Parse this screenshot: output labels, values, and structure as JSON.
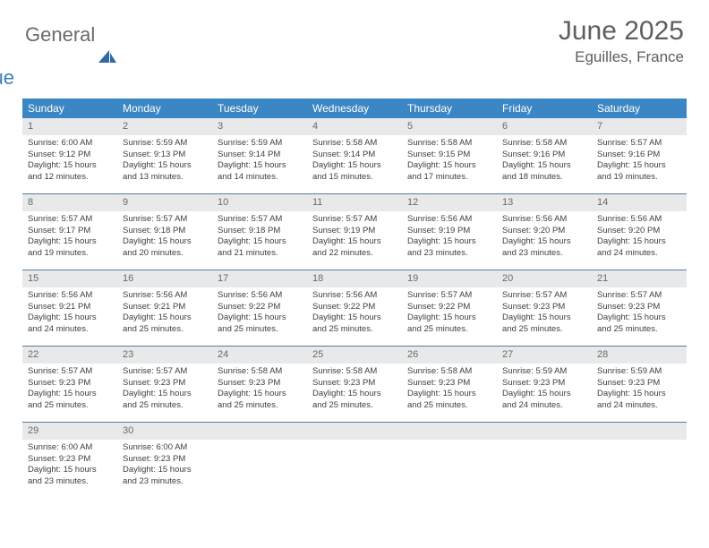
{
  "brand": {
    "part1": "General",
    "part2": "Blue"
  },
  "title": "June 2025",
  "location": "Eguilles, France",
  "colors": {
    "header_bg": "#3b86c4",
    "header_text": "#ffffff",
    "daynum_bg": "#e8e9ea",
    "daynum_text": "#6a6a6a",
    "body_text": "#3f3f3f",
    "row_border": "#5a7d9a",
    "title_text": "#5e5e5e",
    "logo_gray": "#6b6b6b",
    "logo_blue": "#3b7fb8"
  },
  "day_names": [
    "Sunday",
    "Monday",
    "Tuesday",
    "Wednesday",
    "Thursday",
    "Friday",
    "Saturday"
  ],
  "weeks": [
    [
      {
        "n": "1",
        "sr": "6:00 AM",
        "ss": "9:12 PM",
        "dl": "15 hours and 12 minutes."
      },
      {
        "n": "2",
        "sr": "5:59 AM",
        "ss": "9:13 PM",
        "dl": "15 hours and 13 minutes."
      },
      {
        "n": "3",
        "sr": "5:59 AM",
        "ss": "9:14 PM",
        "dl": "15 hours and 14 minutes."
      },
      {
        "n": "4",
        "sr": "5:58 AM",
        "ss": "9:14 PM",
        "dl": "15 hours and 15 minutes."
      },
      {
        "n": "5",
        "sr": "5:58 AM",
        "ss": "9:15 PM",
        "dl": "15 hours and 17 minutes."
      },
      {
        "n": "6",
        "sr": "5:58 AM",
        "ss": "9:16 PM",
        "dl": "15 hours and 18 minutes."
      },
      {
        "n": "7",
        "sr": "5:57 AM",
        "ss": "9:16 PM",
        "dl": "15 hours and 19 minutes."
      }
    ],
    [
      {
        "n": "8",
        "sr": "5:57 AM",
        "ss": "9:17 PM",
        "dl": "15 hours and 19 minutes."
      },
      {
        "n": "9",
        "sr": "5:57 AM",
        "ss": "9:18 PM",
        "dl": "15 hours and 20 minutes."
      },
      {
        "n": "10",
        "sr": "5:57 AM",
        "ss": "9:18 PM",
        "dl": "15 hours and 21 minutes."
      },
      {
        "n": "11",
        "sr": "5:57 AM",
        "ss": "9:19 PM",
        "dl": "15 hours and 22 minutes."
      },
      {
        "n": "12",
        "sr": "5:56 AM",
        "ss": "9:19 PM",
        "dl": "15 hours and 23 minutes."
      },
      {
        "n": "13",
        "sr": "5:56 AM",
        "ss": "9:20 PM",
        "dl": "15 hours and 23 minutes."
      },
      {
        "n": "14",
        "sr": "5:56 AM",
        "ss": "9:20 PM",
        "dl": "15 hours and 24 minutes."
      }
    ],
    [
      {
        "n": "15",
        "sr": "5:56 AM",
        "ss": "9:21 PM",
        "dl": "15 hours and 24 minutes."
      },
      {
        "n": "16",
        "sr": "5:56 AM",
        "ss": "9:21 PM",
        "dl": "15 hours and 25 minutes."
      },
      {
        "n": "17",
        "sr": "5:56 AM",
        "ss": "9:22 PM",
        "dl": "15 hours and 25 minutes."
      },
      {
        "n": "18",
        "sr": "5:56 AM",
        "ss": "9:22 PM",
        "dl": "15 hours and 25 minutes."
      },
      {
        "n": "19",
        "sr": "5:57 AM",
        "ss": "9:22 PM",
        "dl": "15 hours and 25 minutes."
      },
      {
        "n": "20",
        "sr": "5:57 AM",
        "ss": "9:23 PM",
        "dl": "15 hours and 25 minutes."
      },
      {
        "n": "21",
        "sr": "5:57 AM",
        "ss": "9:23 PM",
        "dl": "15 hours and 25 minutes."
      }
    ],
    [
      {
        "n": "22",
        "sr": "5:57 AM",
        "ss": "9:23 PM",
        "dl": "15 hours and 25 minutes."
      },
      {
        "n": "23",
        "sr": "5:57 AM",
        "ss": "9:23 PM",
        "dl": "15 hours and 25 minutes."
      },
      {
        "n": "24",
        "sr": "5:58 AM",
        "ss": "9:23 PM",
        "dl": "15 hours and 25 minutes."
      },
      {
        "n": "25",
        "sr": "5:58 AM",
        "ss": "9:23 PM",
        "dl": "15 hours and 25 minutes."
      },
      {
        "n": "26",
        "sr": "5:58 AM",
        "ss": "9:23 PM",
        "dl": "15 hours and 25 minutes."
      },
      {
        "n": "27",
        "sr": "5:59 AM",
        "ss": "9:23 PM",
        "dl": "15 hours and 24 minutes."
      },
      {
        "n": "28",
        "sr": "5:59 AM",
        "ss": "9:23 PM",
        "dl": "15 hours and 24 minutes."
      }
    ],
    [
      {
        "n": "29",
        "sr": "6:00 AM",
        "ss": "9:23 PM",
        "dl": "15 hours and 23 minutes."
      },
      {
        "n": "30",
        "sr": "6:00 AM",
        "ss": "9:23 PM",
        "dl": "15 hours and 23 minutes."
      },
      null,
      null,
      null,
      null,
      null
    ]
  ],
  "labels": {
    "sunrise": "Sunrise:",
    "sunset": "Sunset:",
    "daylight": "Daylight:"
  }
}
